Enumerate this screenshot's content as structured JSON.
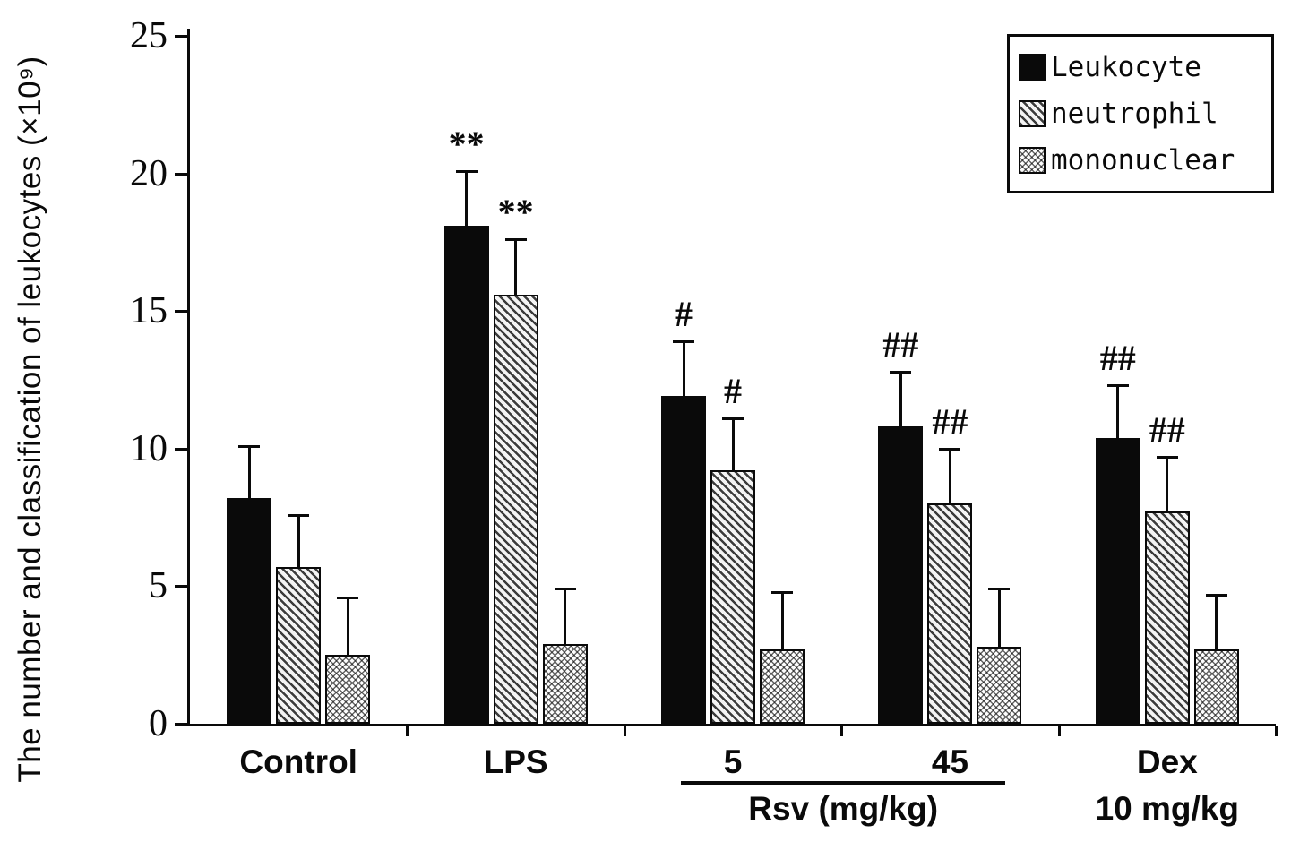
{
  "chart_data": {
    "type": "bar",
    "title": "",
    "ylabel": "The number and classification of leukocytes (×10⁹)",
    "xlabel": "",
    "ylim": [
      0,
      25
    ],
    "yticks": [
      0,
      5,
      10,
      15,
      20,
      25
    ],
    "grid": false,
    "legend_position": "top-right",
    "categories": [
      "Control",
      "LPS",
      "5",
      "45",
      "Dex"
    ],
    "series": [
      {
        "name": "Leukocyte",
        "pattern": "solid",
        "values": [
          8.2,
          18.1,
          11.9,
          10.8,
          10.4
        ],
        "errors": [
          1.9,
          2.0,
          2.0,
          2.0,
          1.9
        ],
        "annotations": [
          "",
          "**",
          "#",
          "##",
          "##"
        ]
      },
      {
        "name": "neutrophil",
        "pattern": "diag",
        "values": [
          5.7,
          15.6,
          9.2,
          8.0,
          7.7
        ],
        "errors": [
          1.9,
          2.0,
          1.9,
          2.0,
          2.0
        ],
        "annotations": [
          "",
          "**",
          "#",
          "##",
          "##"
        ]
      },
      {
        "name": "mononuclear",
        "pattern": "cross",
        "values": [
          2.5,
          2.9,
          2.7,
          2.8,
          2.7
        ],
        "errors": [
          2.1,
          2.0,
          2.1,
          2.1,
          2.0
        ],
        "annotations": [
          "",
          "",
          "",
          "",
          ""
        ]
      }
    ],
    "x_axis_extras": {
      "rsv_bracket_label": "Rsv (mg/kg)",
      "rsv_bracket_categories": [
        "5",
        "45"
      ],
      "dex_sublabel": "10 mg/kg"
    }
  },
  "legend": {
    "items": [
      {
        "label": "Leukocyte",
        "pattern": "solid"
      },
      {
        "label": "neutrophil",
        "pattern": "diag"
      },
      {
        "label": "mononuclear",
        "pattern": "cross"
      }
    ]
  }
}
